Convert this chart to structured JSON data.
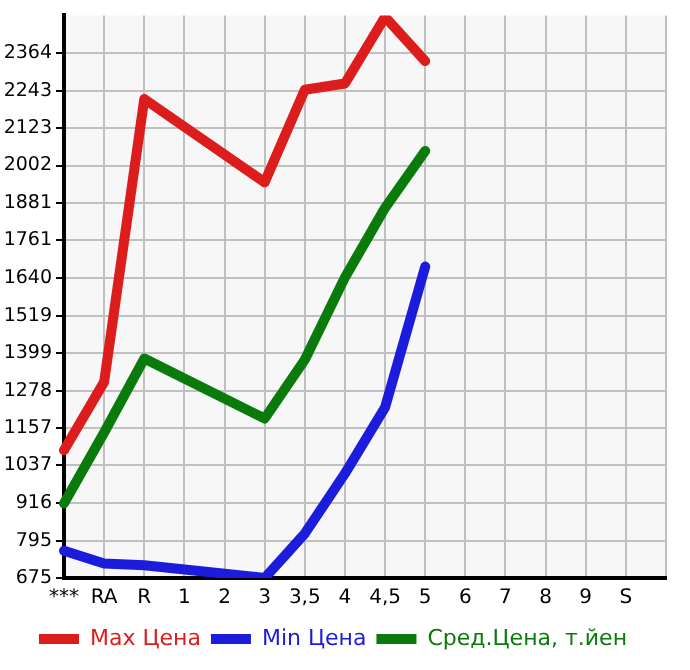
{
  "chart_data": {
    "type": "line",
    "categories": [
      "***",
      "RA",
      "R",
      "1",
      "2",
      "3",
      "3,5",
      "4",
      "4,5",
      "5",
      "6",
      "7",
      "8",
      "9",
      "S",
      null
    ],
    "series": [
      {
        "name": "Max Цена",
        "color": "#dd1c1c",
        "values": [
          1086,
          1306,
          2216,
          null,
          null,
          1948,
          2246,
          2266,
          2480,
          2338,
          null,
          null,
          null,
          null,
          null,
          null
        ]
      },
      {
        "name": "Min Цена",
        "color": "#1c1cdd",
        "values": [
          763,
          722,
          716,
          null,
          null,
          675,
          818,
          1011,
          1224,
          1677,
          null,
          null,
          null,
          null,
          null,
          null
        ]
      },
      {
        "name": "Сред.Цена, т.йен",
        "color": "#0a7a0a",
        "values": [
          915,
          1143,
          1381,
          null,
          null,
          1188,
          1377,
          1642,
          1866,
          2049,
          null,
          null,
          null,
          null,
          null,
          null
        ]
      }
    ],
    "ylim": [
      675,
      2485
    ],
    "yticks": [
      675,
      795,
      916,
      1037,
      1157,
      1278,
      1399,
      1519,
      1640,
      1761,
      1881,
      2002,
      2123,
      2243,
      2364
    ],
    "grid": true,
    "legend": "bottom",
    "marker": "none",
    "line_style": "solid"
  }
}
